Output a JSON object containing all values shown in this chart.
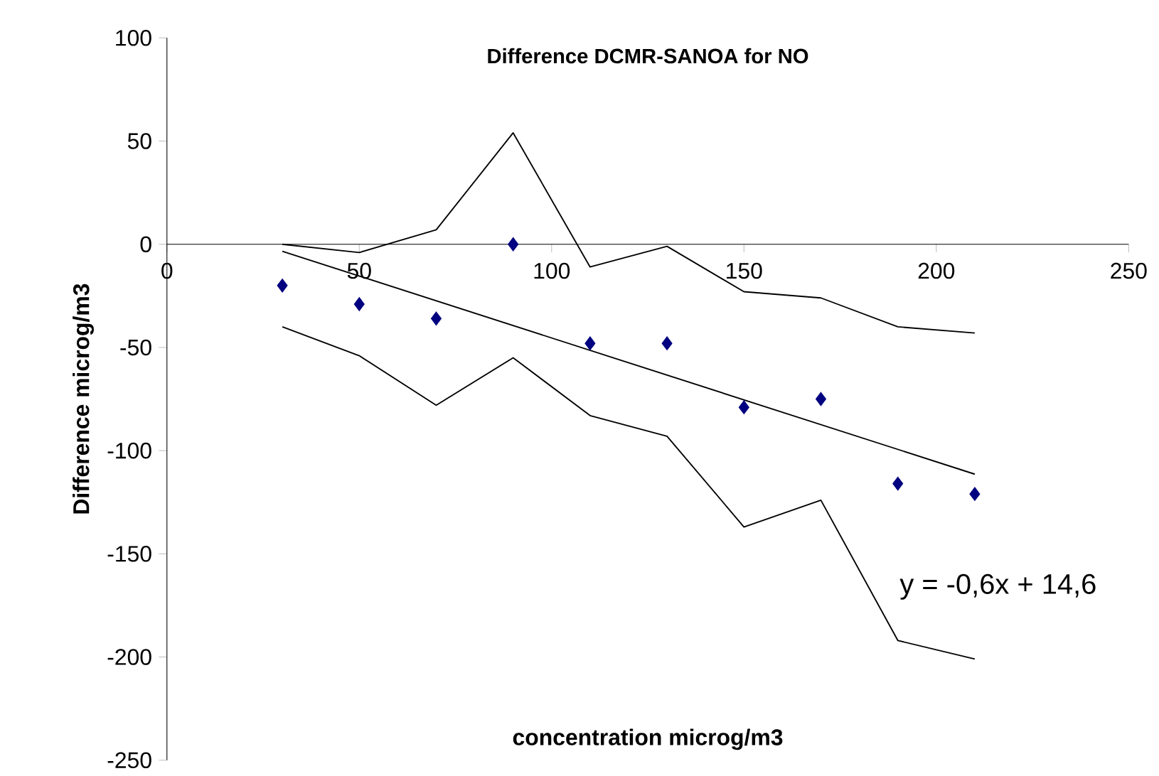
{
  "chart_data": {
    "type": "scatter",
    "title": "Difference DCMR-SANOA for NO",
    "xlabel": "concentration microg/m3",
    "ylabel": "Difference microg/m3",
    "xlim": [
      0,
      250
    ],
    "ylim": [
      -250,
      100
    ],
    "xticks": [
      0,
      50,
      100,
      150,
      200,
      250
    ],
    "yticks": [
      -250,
      -200,
      -150,
      -100,
      -50,
      0,
      50,
      100
    ],
    "grid": false,
    "series": [
      {
        "marker": "diamond",
        "color": "#000080",
        "x": [
          30,
          50,
          70,
          90,
          110,
          130,
          150,
          170,
          190,
          210
        ],
        "values": [
          -20,
          -29,
          -36,
          0,
          -48,
          -48,
          -79,
          -75,
          -116,
          -121
        ]
      },
      {
        "type": "line",
        "color": "#000000",
        "x": [
          30,
          50,
          70,
          90,
          110,
          130,
          150,
          170,
          190,
          210
        ],
        "values": [
          0,
          -4,
          7,
          54,
          -11,
          -1,
          -23,
          -26,
          -40,
          -43
        ]
      },
      {
        "type": "line",
        "color": "#000000",
        "x": [
          30,
          50,
          70,
          90,
          110,
          130,
          150,
          170,
          190,
          210
        ],
        "values": [
          -40,
          -54,
          -78,
          -55,
          -83,
          -93,
          -137,
          -124,
          -192,
          -201
        ]
      },
      {
        "type": "line",
        "color": "#000000",
        "x": [
          30,
          210
        ],
        "values": [
          -3.4,
          -111.4
        ]
      }
    ],
    "annotations": [
      "y = -0,6x + 14,6"
    ]
  }
}
